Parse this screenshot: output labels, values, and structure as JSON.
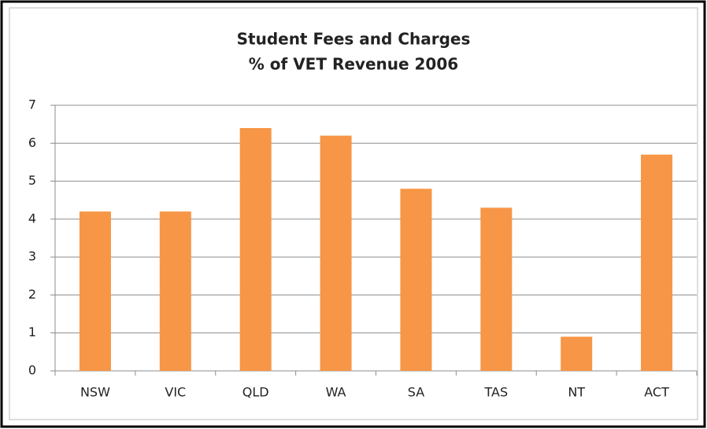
{
  "chart_data": {
    "type": "bar",
    "title": "Student Fees and Charges",
    "subtitle": "% of VET Revenue 2006",
    "categories": [
      "NSW",
      "VIC",
      "QLD",
      "WA",
      "SA",
      "TAS",
      "NT",
      "ACT"
    ],
    "values": [
      4.2,
      4.2,
      6.4,
      6.2,
      4.8,
      4.3,
      0.9,
      5.7
    ],
    "color": "#f79646",
    "ylim": [
      0,
      7
    ],
    "yticks": [
      0,
      1,
      2,
      3,
      4,
      5,
      6,
      7
    ],
    "grid": true
  }
}
